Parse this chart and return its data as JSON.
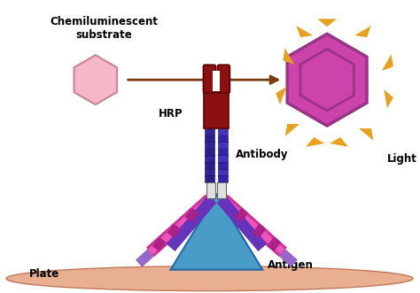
{
  "background_color": "#ffffff",
  "title_line1": "Chemiluminescent",
  "title_line2": "substrate",
  "title_color": "#000000",
  "substrate_hex_color": "#f5b8c8",
  "substrate_hex_border": "#d08090",
  "product_hex_color": "#cc44aa",
  "product_hex_border": "#993388",
  "product_hex_inner_color": "#bb33aa",
  "arrow_color": "#7B3A10",
  "light_ray_color": "#e8a020",
  "plate_color": "#e8b090",
  "plate_edge": "#c07858",
  "antigen_color": "#4a9cc8",
  "antigen_edge": "#2266aa",
  "hrp_color": "#8B1010",
  "hrp_edge": "#5a0000",
  "stem_color1": "#332299",
  "stem_color2": "#4433bb",
  "arm_pink": "#cc3399",
  "arm_purple": "#6633bb",
  "arm_lavender": "#9966cc",
  "hinge_color": "#dddddd",
  "hinge_edge": "#888888",
  "label_hrp": "HRP",
  "label_antibody": "Antibody",
  "label_antigen": "Antigen",
  "label_plate": "Plate",
  "label_light": "Light",
  "figsize": [
    4.74,
    3.31
  ],
  "dpi": 100
}
